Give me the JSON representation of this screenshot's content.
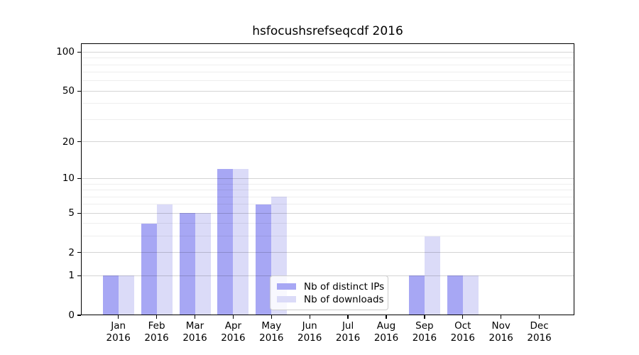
{
  "chart_data": {
    "type": "bar",
    "title": "hsfocushsrefseqcdf 2016",
    "categories": [
      "Jan",
      "Feb",
      "Mar",
      "Apr",
      "May",
      "Jun",
      "Jul",
      "Aug",
      "Sep",
      "Oct",
      "Nov",
      "Dec"
    ],
    "category_sublabel": "2016",
    "series": [
      {
        "name": "Nb of distinct IPs",
        "color": "#a7a7f4",
        "values": [
          1,
          4,
          5,
          12,
          6,
          0,
          0,
          0,
          1,
          1,
          0,
          0
        ]
      },
      {
        "name": "Nb of downloads",
        "color": "#dbdbf8",
        "values": [
          1,
          6,
          5,
          12,
          7,
          0,
          0,
          0,
          3,
          1,
          0,
          0
        ]
      }
    ],
    "y_axis": {
      "scale": "log10(1+v)",
      "major_ticks": [
        0,
        1,
        2,
        5,
        10,
        20,
        50,
        100
      ],
      "minor_gridlines": [
        3,
        4,
        6,
        7,
        8,
        9,
        30,
        40,
        60,
        70,
        80,
        90
      ],
      "top_value": 117
    },
    "xlabel": "",
    "ylabel": "",
    "grid": true,
    "legend_position": "lower center",
    "colors": {
      "major_grid": "#d4d4d4",
      "minor_grid": "#eeeeee",
      "axis": "#000000",
      "background": "#ffffff"
    }
  }
}
